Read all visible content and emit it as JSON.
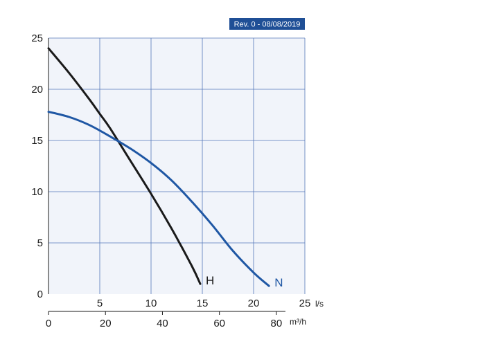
{
  "revision_badge": "Rev. 0 - 08/08/2019",
  "colors": {
    "plot_background": "#f1f4fa",
    "grid": "#5577b8",
    "badge": "#1f4f96",
    "series_h": "#1a1a1a",
    "series_n": "#1f57a4"
  },
  "chart_data": {
    "type": "line",
    "title": "",
    "xlabel": "l/s",
    "x2label": "m³/h",
    "ylabel": "",
    "xlim": [
      0,
      25
    ],
    "ylim": [
      0,
      25
    ],
    "x_ticks": [
      "5",
      "10",
      "15",
      "20",
      "25"
    ],
    "y_ticks": [
      "0",
      "5",
      "10",
      "15",
      "20",
      "25"
    ],
    "x2_ticks": [
      "0",
      "20",
      "40",
      "60",
      "80"
    ],
    "x2_per_x": 3.6,
    "grid": true,
    "series": [
      {
        "name": "H",
        "color": "#1a1a1a",
        "x": [
          0,
          2,
          4,
          5,
          6,
          8,
          10,
          12,
          14,
          14.8
        ],
        "y": [
          24.0,
          21.6,
          19.0,
          17.6,
          16.2,
          13.0,
          9.8,
          6.4,
          2.7,
          1.0
        ]
      },
      {
        "name": "N",
        "color": "#1f57a4",
        "x": [
          0,
          2,
          4,
          6,
          8,
          10,
          12,
          14,
          16,
          18,
          20,
          21.5
        ],
        "y": [
          17.8,
          17.3,
          16.5,
          15.4,
          14.2,
          12.8,
          11.1,
          9.0,
          6.7,
          4.2,
          2.1,
          0.8
        ]
      }
    ]
  }
}
